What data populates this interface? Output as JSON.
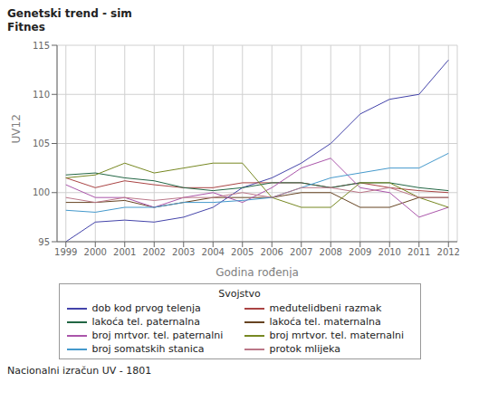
{
  "chart_data": {
    "type": "line",
    "title": "Genetski trend - sim",
    "subtitle": "Fitnes",
    "x_label": "Godina rođenja",
    "y_label": "UV12",
    "annotations": [
      "Nacionalni izračun UV - 1801"
    ],
    "legend_title": "Svojstvo",
    "legend": "bottom",
    "grid": true,
    "x": [
      1999,
      2000,
      2001,
      2002,
      2003,
      2004,
      2005,
      2006,
      2007,
      2008,
      2009,
      2010,
      2011,
      2012
    ],
    "xlim": [
      1998.7,
      2012.3
    ],
    "xticks": [
      1999,
      2000,
      2001,
      2002,
      2003,
      2004,
      2005,
      2006,
      2007,
      2008,
      2009,
      2010,
      2011,
      2012
    ],
    "ylim": [
      95,
      115
    ],
    "yticks": [
      95,
      100,
      105,
      110,
      115
    ],
    "series": [
      {
        "name": "dob kod prvog telenja",
        "color": "#4444aa",
        "values": [
          95.0,
          97.0,
          97.2,
          97.0,
          97.5,
          98.5,
          100.5,
          101.5,
          103.0,
          105.0,
          108.0,
          109.5,
          110.0,
          113.5
        ]
      },
      {
        "name": "međutelidbeni razmak",
        "color": "#aa4444",
        "values": [
          101.5,
          100.5,
          101.2,
          100.8,
          100.5,
          100.5,
          101.0,
          101.0,
          101.0,
          100.5,
          101.0,
          100.5,
          100.2,
          100.0
        ]
      },
      {
        "name": "lakoća tel. paternalna",
        "color": "#226644",
        "values": [
          101.8,
          102.0,
          101.5,
          101.2,
          100.5,
          100.2,
          100.5,
          101.0,
          101.0,
          100.5,
          101.0,
          101.0,
          100.5,
          100.2
        ]
      },
      {
        "name": "lakoća tel. maternalna",
        "color": "#664422",
        "values": [
          99.0,
          99.0,
          99.2,
          98.5,
          99.0,
          99.5,
          99.5,
          99.5,
          100.0,
          100.0,
          98.5,
          98.5,
          99.5,
          99.5
        ]
      },
      {
        "name": "broj mrtvor. tel. paternalni",
        "color": "#aa55aa",
        "values": [
          100.8,
          99.5,
          99.5,
          98.5,
          99.5,
          100.0,
          99.0,
          100.5,
          102.5,
          103.5,
          100.5,
          100.0,
          97.5,
          98.5
        ]
      },
      {
        "name": "broj mrtvor. tel. maternalni",
        "color": "#778822",
        "values": [
          101.5,
          101.8,
          103.0,
          102.0,
          102.5,
          103.0,
          103.0,
          99.5,
          98.5,
          98.5,
          101.0,
          101.0,
          99.5,
          98.5
        ]
      },
      {
        "name": "broj somatskih stanica",
        "color": "#4499cc",
        "values": [
          98.2,
          98.0,
          98.5,
          98.5,
          99.0,
          99.0,
          99.2,
          99.5,
          100.5,
          101.5,
          102.0,
          102.5,
          102.5,
          104.0
        ]
      },
      {
        "name": "protok mlijeka",
        "color": "#bb7788",
        "values": [
          99.5,
          99.0,
          99.5,
          99.2,
          99.5,
          99.5,
          100.0,
          99.5,
          100.5,
          100.5,
          100.0,
          100.5,
          99.5,
          99.5
        ]
      }
    ]
  }
}
